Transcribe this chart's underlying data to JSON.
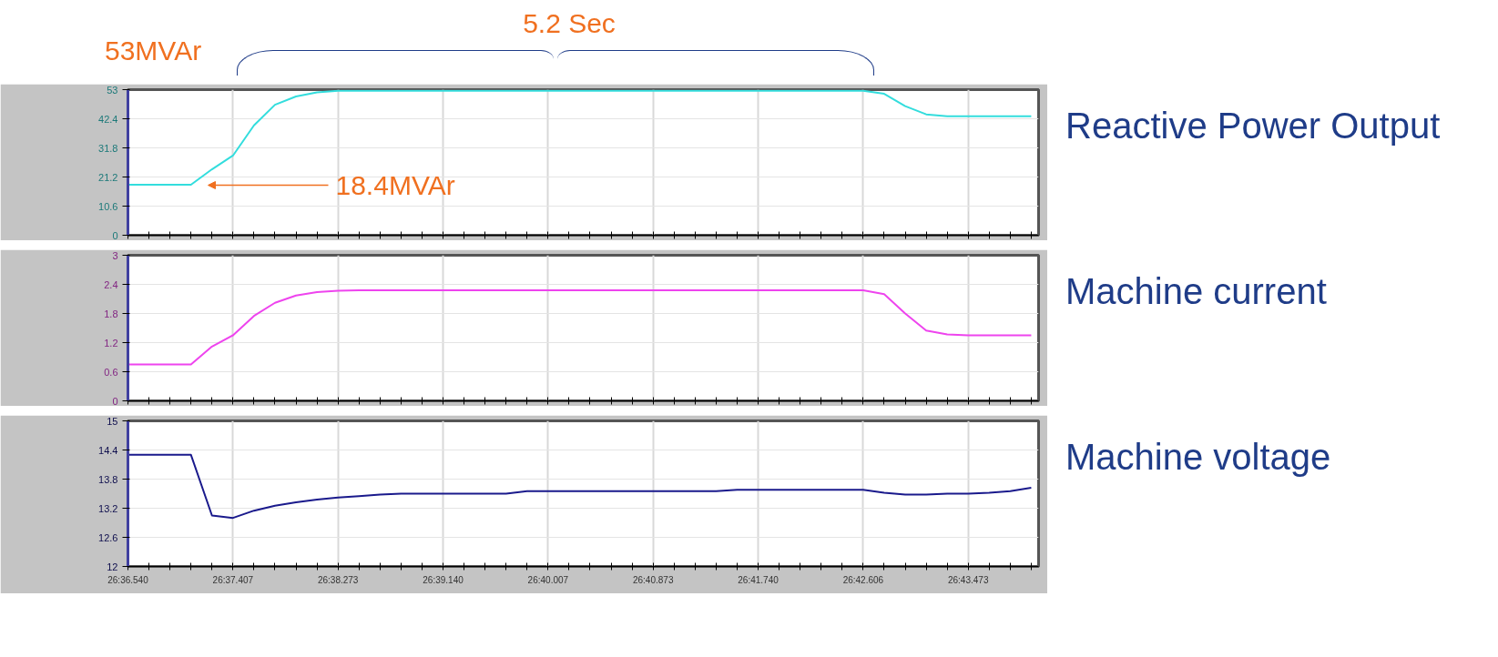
{
  "chart_data": [
    {
      "type": "line",
      "categories": [
        null,
        null,
        null,
        null,
        null,
        null,
        null,
        null,
        null,
        null,
        null,
        null,
        null,
        null,
        null,
        null,
        null,
        null,
        null,
        null,
        null,
        null,
        null,
        null,
        null,
        null,
        null,
        null,
        null,
        null,
        null,
        null,
        null,
        null,
        null,
        null,
        null,
        null,
        null,
        null,
        null,
        null,
        null,
        null
      ],
      "ylim": [
        0,
        53
      ],
      "yticks": [
        0,
        10.6,
        21.2,
        31.8,
        42.4,
        53
      ],
      "tick_labels": "y",
      "grid": true,
      "legend": "right",
      "line_style": "solid",
      "annotations": [
        "53MVAr",
        "18.4MVAr",
        "5.2 Sec"
      ],
      "series": [
        {
          "name": "Reactive Power Output",
          "color": "#33dddd",
          "values": [
            18.4,
            18.4,
            18.4,
            18.4,
            24,
            29,
            40,
            47.5,
            50.5,
            52,
            52.6,
            52.6,
            52.6,
            52.6,
            52.6,
            52.6,
            52.6,
            52.6,
            52.6,
            52.6,
            52.6,
            52.6,
            52.6,
            52.6,
            52.6,
            52.6,
            52.6,
            52.6,
            52.6,
            52.6,
            52.6,
            52.6,
            52.6,
            52.6,
            52.6,
            52.6,
            51.5,
            47,
            44,
            43.3,
            43.3,
            43.3,
            43.3,
            43.3
          ]
        }
      ]
    },
    {
      "type": "line",
      "categories": [
        null,
        null,
        null,
        null,
        null,
        null,
        null,
        null,
        null,
        null,
        null,
        null,
        null,
        null,
        null,
        null,
        null,
        null,
        null,
        null,
        null,
        null,
        null,
        null,
        null,
        null,
        null,
        null,
        null,
        null,
        null,
        null,
        null,
        null,
        null,
        null,
        null,
        null,
        null,
        null,
        null,
        null,
        null,
        null
      ],
      "ylim": [
        0,
        3
      ],
      "yticks": [
        0,
        0.6,
        1.2,
        1.8,
        2.4,
        3
      ],
      "tick_labels": "y",
      "grid": true,
      "legend": "right",
      "line_style": "solid",
      "series": [
        {
          "name": "Machine current",
          "color": "#ee44ee",
          "values": [
            0.75,
            0.75,
            0.75,
            0.75,
            1.12,
            1.35,
            1.75,
            2.02,
            2.17,
            2.24,
            2.27,
            2.28,
            2.28,
            2.28,
            2.28,
            2.28,
            2.28,
            2.28,
            2.28,
            2.28,
            2.28,
            2.28,
            2.28,
            2.28,
            2.28,
            2.28,
            2.28,
            2.28,
            2.28,
            2.28,
            2.28,
            2.28,
            2.28,
            2.28,
            2.28,
            2.28,
            2.2,
            1.8,
            1.45,
            1.37,
            1.35,
            1.35,
            1.35,
            1.35
          ]
        }
      ]
    },
    {
      "type": "line",
      "categories": [
        "26:36.540",
        null,
        null,
        null,
        null,
        "26:37.407",
        null,
        null,
        null,
        null,
        "26:38.273",
        null,
        null,
        null,
        null,
        "26:39.140",
        null,
        null,
        null,
        null,
        "26:40.007",
        null,
        null,
        null,
        null,
        "26:40.873",
        null,
        null,
        null,
        null,
        "26:41.740",
        null,
        null,
        null,
        null,
        "26:42.606",
        null,
        null,
        null,
        null,
        "26:43.473",
        null,
        null,
        null
      ],
      "ylim": [
        12,
        15
      ],
      "yticks": [
        12,
        12.6,
        13.2,
        13.8,
        14.4,
        15
      ],
      "grid": true,
      "legend": "right",
      "line_style": "solid",
      "series": [
        {
          "name": "Machine voltage",
          "color": "#1a1a8c",
          "values": [
            14.3,
            14.3,
            14.3,
            14.3,
            13.05,
            13.0,
            13.15,
            13.25,
            13.32,
            13.38,
            13.42,
            13.45,
            13.48,
            13.5,
            13.5,
            13.5,
            13.5,
            13.5,
            13.5,
            13.55,
            13.55,
            13.55,
            13.55,
            13.55,
            13.55,
            13.55,
            13.55,
            13.55,
            13.55,
            13.58,
            13.58,
            13.58,
            13.58,
            13.58,
            13.58,
            13.58,
            13.52,
            13.48,
            13.48,
            13.5,
            13.5,
            13.52,
            13.55,
            13.62
          ]
        }
      ]
    }
  ]
}
